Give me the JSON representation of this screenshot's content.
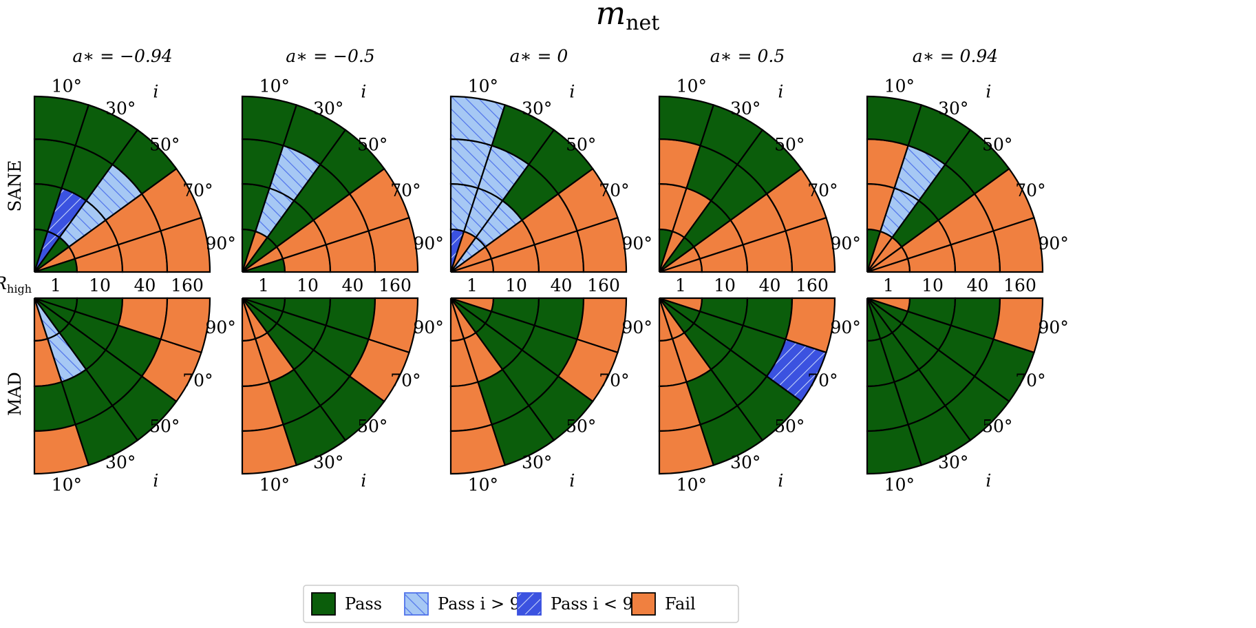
{
  "chart_data": {
    "type": "polar-wedge-grid",
    "title": "m_net",
    "title_main": "m",
    "title_sub": "net",
    "radial_axis_label_main": "R",
    "radial_axis_label_sub": "high",
    "radial_tick_labels": [
      "1",
      "10",
      "40",
      "160"
    ],
    "angular_axis_label": "i",
    "angular_tick_labels": [
      "10°",
      "30°",
      "50°",
      "70°",
      "90°"
    ],
    "row_labels": [
      "SANE",
      "MAD"
    ],
    "columns": [
      {
        "label": "a∗ = −0.94",
        "spin": -0.94
      },
      {
        "label": "a∗ = −0.5",
        "spin": -0.5
      },
      {
        "label": "a∗ = 0",
        "spin": 0
      },
      {
        "label": "a∗ = 0.5",
        "spin": 0.5
      },
      {
        "label": "a∗ = 0.94",
        "spin": 0.94
      }
    ],
    "grid_note": "cells[row][column][ring][wedge]; ring order R_high = 1, 10, 40, 160; wedge order i = 10°, 30°, 50°, 70°, 90°; codes: P = Pass, H = Pass i > 90°, D = Pass i < 90°, F = Fail",
    "cells": [
      [
        [
          [
            "P",
            "D",
            "P",
            "F",
            "P"
          ],
          [
            "P",
            "D",
            "H",
            "F",
            "F"
          ],
          [
            "P",
            "P",
            "H",
            "F",
            "F"
          ],
          [
            "P",
            "P",
            "P",
            "F",
            "F"
          ]
        ],
        [
          [
            "P",
            "F",
            "P",
            "F",
            "P"
          ],
          [
            "P",
            "H",
            "P",
            "F",
            "F"
          ],
          [
            "P",
            "H",
            "P",
            "F",
            "F"
          ],
          [
            "P",
            "P",
            "P",
            "F",
            "F"
          ]
        ],
        [
          [
            "D",
            "F",
            "H",
            "F",
            "F"
          ],
          [
            "H",
            "H",
            "H",
            "F",
            "F"
          ],
          [
            "H",
            "H",
            "P",
            "F",
            "F"
          ],
          [
            "H",
            "P",
            "P",
            "F",
            "F"
          ]
        ],
        [
          [
            "P",
            "F",
            "P",
            "F",
            "F"
          ],
          [
            "F",
            "F",
            "P",
            "F",
            "F"
          ],
          [
            "F",
            "P",
            "P",
            "F",
            "F"
          ],
          [
            "P",
            "P",
            "P",
            "F",
            "F"
          ]
        ],
        [
          [
            "P",
            "F",
            "F",
            "F",
            "F"
          ],
          [
            "F",
            "H",
            "P",
            "F",
            "F"
          ],
          [
            "F",
            "H",
            "P",
            "F",
            "F"
          ],
          [
            "P",
            "P",
            "P",
            "F",
            "F"
          ]
        ]
      ],
      [
        [
          [
            "F",
            "H",
            "P",
            "P",
            "P"
          ],
          [
            "F",
            "H",
            "P",
            "P",
            "P"
          ],
          [
            "P",
            "P",
            "P",
            "P",
            "F"
          ],
          [
            "F",
            "P",
            "P",
            "F",
            "F"
          ]
        ],
        [
          [
            "F",
            "F",
            "P",
            "P",
            "P"
          ],
          [
            "F",
            "F",
            "P",
            "P",
            "P"
          ],
          [
            "F",
            "P",
            "P",
            "P",
            "P"
          ],
          [
            "F",
            "P",
            "P",
            "F",
            "F"
          ]
        ],
        [
          [
            "F",
            "F",
            "P",
            "P",
            "F"
          ],
          [
            "F",
            "F",
            "P",
            "P",
            "P"
          ],
          [
            "F",
            "P",
            "P",
            "P",
            "P"
          ],
          [
            "F",
            "P",
            "P",
            "F",
            "F"
          ]
        ],
        [
          [
            "F",
            "F",
            "P",
            "P",
            "F"
          ],
          [
            "F",
            "F",
            "P",
            "P",
            "P"
          ],
          [
            "F",
            "P",
            "P",
            "P",
            "P"
          ],
          [
            "F",
            "P",
            "P",
            "D",
            "F"
          ]
        ],
        [
          [
            "P",
            "P",
            "P",
            "P",
            "F"
          ],
          [
            "P",
            "P",
            "P",
            "P",
            "P"
          ],
          [
            "P",
            "P",
            "P",
            "P",
            "P"
          ],
          [
            "P",
            "P",
            "P",
            "P",
            "F"
          ]
        ]
      ]
    ],
    "legend": [
      {
        "code": "P",
        "label": "Pass"
      },
      {
        "code": "H",
        "label": "Pass i > 90°"
      },
      {
        "code": "D",
        "label": "Pass i < 90°"
      },
      {
        "code": "F",
        "label": "Fail"
      }
    ],
    "colors": {
      "P": "#0b5d0b",
      "F": "#f08040",
      "H_fill": "#a6c8f4",
      "H_hatch": "#4f72ea",
      "D_fill": "#3b52e0",
      "D_hatch": "#c6d4fa",
      "edge": "#000000"
    }
  }
}
